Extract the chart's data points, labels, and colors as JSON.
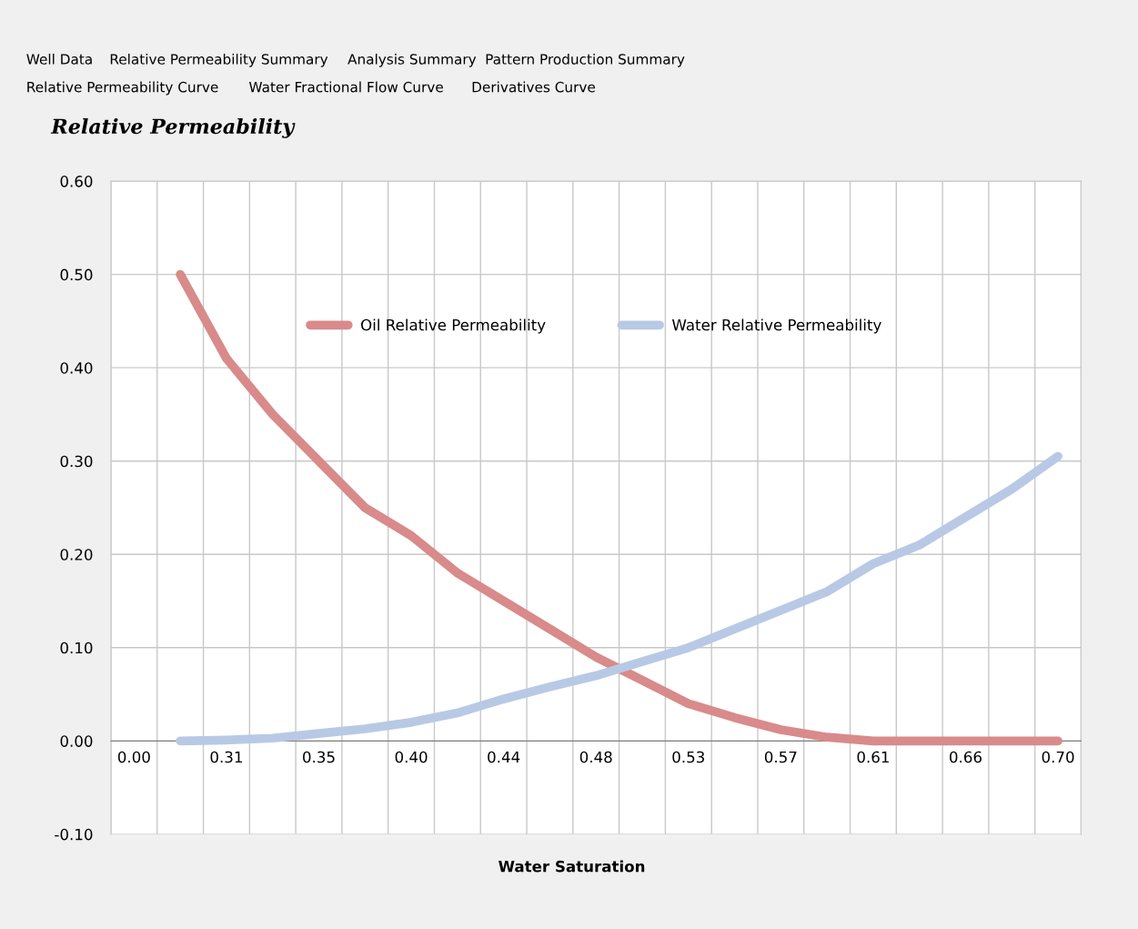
{
  "chart_data": {
    "type": "line",
    "title": "Relative Permeability",
    "xlabel": "Water Saturation",
    "categories": [
      "0.00",
      null,
      "0.31",
      null,
      "0.35",
      null,
      "0.40",
      null,
      "0.44",
      null,
      "0.48",
      null,
      "0.53",
      null,
      "0.57",
      null,
      "0.61",
      null,
      "0.66",
      null,
      "0.70"
    ],
    "series": [
      {
        "name": "Oil Relative Permeability",
        "color": "#d98a8a",
        "values": [
          null,
          0.5,
          0.41,
          0.35,
          0.3,
          0.25,
          0.22,
          0.18,
          0.15,
          0.12,
          0.09,
          0.065,
          0.04,
          0.025,
          0.012,
          0.004,
          0.0,
          0.0,
          0.0,
          0.0,
          0.0
        ]
      },
      {
        "name": "Water Relative Permeability",
        "color": "#b8c9e6",
        "values": [
          null,
          0.0,
          0.001,
          0.003,
          0.008,
          0.013,
          0.02,
          0.03,
          0.045,
          0.058,
          0.07,
          0.085,
          0.1,
          0.12,
          0.14,
          0.16,
          0.19,
          0.21,
          0.24,
          0.27,
          0.305
        ]
      }
    ],
    "ylim": [
      -0.1,
      0.6
    ],
    "yticks": [
      {
        "value": -0.1,
        "label": "-0.10"
      },
      {
        "value": 0,
        "label": "0.00"
      },
      {
        "value": 0.1,
        "label": "0.10"
      },
      {
        "value": 0.2,
        "label": "0.20"
      },
      {
        "value": 0.3,
        "label": "0.30"
      },
      {
        "value": 0.4,
        "label": "0.40"
      },
      {
        "value": 0.5,
        "label": "0.50"
      },
      {
        "value": 0.6,
        "label": "0.60"
      }
    ],
    "grid": true,
    "legend": "top",
    "marker": "none",
    "line_style": "solid",
    "annotations": [
      "Well Data",
      "Relative Permeability Summary",
      "Analysis Summary",
      "Pattern Production Summary",
      "Relative Permeability Curve",
      "Water Fractional Flow Curve",
      "Derivatives Curve"
    ]
  }
}
